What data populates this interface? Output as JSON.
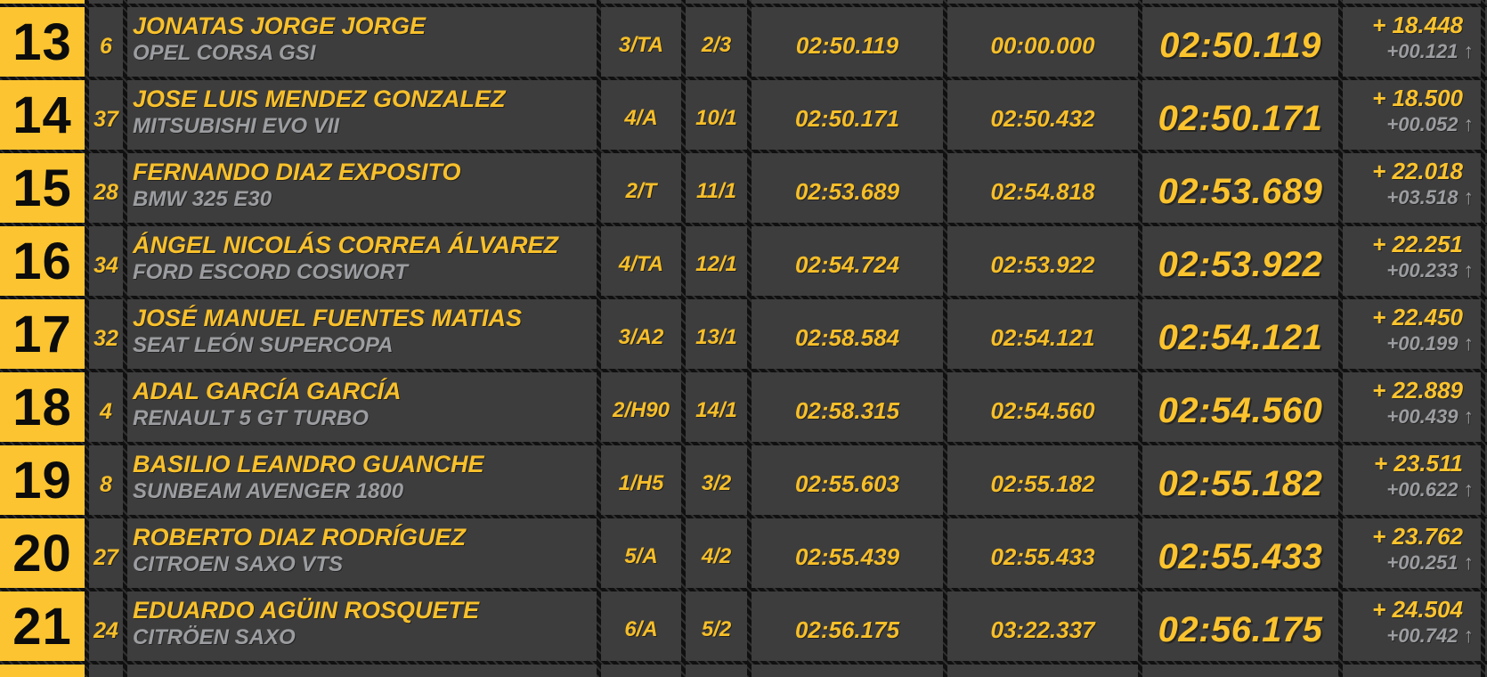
{
  "table": {
    "description": "rally-stage-results-positions-13-21",
    "colors": {
      "position_bg": "#fbc430",
      "row_bg": "#3d3d3d",
      "accent_text": "#f8c02b",
      "secondary_text": "#9c9da0",
      "position_text": "#0c0c0c",
      "grid_hatch": "#101010"
    },
    "icons": {
      "up_arrow": "↑"
    },
    "rows": [
      {
        "position": "13",
        "car_number": "6",
        "driver": "JONATAS JORGE JORGE",
        "car": "OPEL CORSA GSI",
        "class": "3/TA",
        "class_position": "2/3",
        "time_a": "02:50.119",
        "time_b": "00:00.000",
        "stage_time": "02:50.119",
        "gap_total": "+ 18.448",
        "gap_prev": "+00.121",
        "gap_arrow": "↑"
      },
      {
        "position": "14",
        "car_number": "37",
        "driver": "JOSE LUIS MENDEZ GONZALEZ",
        "car": "MITSUBISHI EVO VII",
        "class": "4/A",
        "class_position": "10/1",
        "time_a": "02:50.171",
        "time_b": "02:50.432",
        "stage_time": "02:50.171",
        "gap_total": "+ 18.500",
        "gap_prev": "+00.052",
        "gap_arrow": "↑"
      },
      {
        "position": "15",
        "car_number": "28",
        "driver": "FERNANDO DIAZ EXPOSITO",
        "car": "BMW 325 E30",
        "class": "2/T",
        "class_position": "11/1",
        "time_a": "02:53.689",
        "time_b": "02:54.818",
        "stage_time": "02:53.689",
        "gap_total": "+ 22.018",
        "gap_prev": "+03.518",
        "gap_arrow": "↑"
      },
      {
        "position": "16",
        "car_number": "34",
        "driver": "ÁNGEL NICOLÁS CORREA ÁLVAREZ",
        "car": "FORD ESCORD COSWORT",
        "class": "4/TA",
        "class_position": "12/1",
        "time_a": "02:54.724",
        "time_b": "02:53.922",
        "stage_time": "02:53.922",
        "gap_total": "+ 22.251",
        "gap_prev": "+00.233",
        "gap_arrow": "↑"
      },
      {
        "position": "17",
        "car_number": "32",
        "driver": "JOSÉ MANUEL FUENTES MATIAS",
        "car": "SEAT LEÓN SUPERCOPA",
        "class": "3/A2",
        "class_position": "13/1",
        "time_a": "02:58.584",
        "time_b": "02:54.121",
        "stage_time": "02:54.121",
        "gap_total": "+ 22.450",
        "gap_prev": "+00.199",
        "gap_arrow": "↑"
      },
      {
        "position": "18",
        "car_number": "4",
        "driver": "ADAL GARCÍA GARCÍA",
        "car": "RENAULT 5 GT TURBO",
        "class": "2/H90",
        "class_position": "14/1",
        "time_a": "02:58.315",
        "time_b": "02:54.560",
        "stage_time": "02:54.560",
        "gap_total": "+ 22.889",
        "gap_prev": "+00.439",
        "gap_arrow": "↑"
      },
      {
        "position": "19",
        "car_number": "8",
        "driver": "BASILIO LEANDRO GUANCHE",
        "car": "SUNBEAM AVENGER 1800",
        "class": "1/H5",
        "class_position": "3/2",
        "time_a": "02:55.603",
        "time_b": "02:55.182",
        "stage_time": "02:55.182",
        "gap_total": "+ 23.511",
        "gap_prev": "+00.622",
        "gap_arrow": "↑"
      },
      {
        "position": "20",
        "car_number": "27",
        "driver": "ROBERTO DIAZ RODRÍGUEZ",
        "car": "CITROEN SAXO VTS",
        "class": "5/A",
        "class_position": "4/2",
        "time_a": "02:55.439",
        "time_b": "02:55.433",
        "stage_time": "02:55.433",
        "gap_total": "+ 23.762",
        "gap_prev": "+00.251",
        "gap_arrow": "↑"
      },
      {
        "position": "21",
        "car_number": "24",
        "driver": "EDUARDO AGÜIN ROSQUETE",
        "car": "CITRÖEN SAXO",
        "class": "6/A",
        "class_position": "5/2",
        "time_a": "02:56.175",
        "time_b": "03:22.337",
        "stage_time": "02:56.175",
        "gap_total": "+ 24.504",
        "gap_prev": "+00.742",
        "gap_arrow": "↑"
      }
    ]
  }
}
